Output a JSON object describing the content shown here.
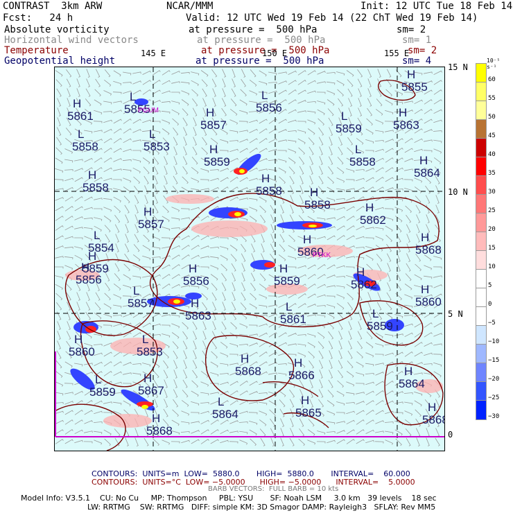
{
  "header": {
    "model": "CONTRAST  3km ARW",
    "org": "NCAR/MMM",
    "init": "Init: 12 UTC Tue 18 Feb 14",
    "fcst": "Fcst:   24 h",
    "valid": "Valid: 12 UTC Wed 19 Feb 14 (22 ChT Wed 19 Feb 14)",
    "fields": [
      {
        "name": "Absolute vorticity",
        "level": "at pressure =  500 hPa",
        "sm": "sm= 2",
        "color": "#000000"
      },
      {
        "name": "Horizontal wind vectors",
        "level": "at pressure =  500 hPa",
        "sm": "sm= 1",
        "color": "#8a8a8a"
      },
      {
        "name": "Temperature",
        "level": "at pressure =  500 hPa",
        "sm": "sm= 2",
        "color": "#8b0000"
      },
      {
        "name": "Geopotential height",
        "level": "at pressure =  500 hPa",
        "sm": "sm= 4",
        "color": "#000066"
      }
    ]
  },
  "axes": {
    "lon_labels": [
      "145 E",
      "150 E",
      "155 E"
    ],
    "lat_labels": [
      "15 N",
      "10 N",
      "5 N",
      "0"
    ]
  },
  "stations": [
    "PGUM",
    "PTKK"
  ],
  "height_marks": [
    {
      "t": "H",
      "v": "5861"
    },
    {
      "t": "L",
      "v": "5855"
    },
    {
      "t": "H",
      "v": "5857"
    },
    {
      "t": "L",
      "v": "5856"
    },
    {
      "t": "L",
      "v": "5859"
    },
    {
      "t": "H",
      "v": "5863"
    },
    {
      "t": "H",
      "v": "5855"
    },
    {
      "t": "L",
      "v": "5858"
    },
    {
      "t": "L",
      "v": "5853"
    },
    {
      "t": "H",
      "v": "5859"
    },
    {
      "t": "L",
      "v": "5858"
    },
    {
      "t": "H",
      "v": "5864"
    },
    {
      "t": "H",
      "v": "5858"
    },
    {
      "t": "H",
      "v": "5858"
    },
    {
      "t": "H",
      "v": "5858"
    },
    {
      "t": "H",
      "v": "5857"
    },
    {
      "t": "L",
      "v": "5854"
    },
    {
      "t": "H",
      "v": "5862"
    },
    {
      "t": "H",
      "v": "5859"
    },
    {
      "t": "H",
      "v": "5860"
    },
    {
      "t": "H",
      "v": "5868"
    },
    {
      "t": "H",
      "v": "5856"
    },
    {
      "t": "H",
      "v": "5859"
    },
    {
      "t": "H",
      "v": "5856"
    },
    {
      "t": "H",
      "v": "5862"
    },
    {
      "t": "L",
      "v": "5857"
    },
    {
      "t": "H",
      "v": "5863"
    },
    {
      "t": "L",
      "v": "5861"
    },
    {
      "t": "L",
      "v": "5859"
    },
    {
      "t": "H",
      "v": "5860"
    },
    {
      "t": "H",
      "v": "5860"
    },
    {
      "t": "L",
      "v": "5853"
    },
    {
      "t": "H",
      "v": "5868"
    },
    {
      "t": "H",
      "v": "5866"
    },
    {
      "t": "H",
      "v": "5864"
    },
    {
      "t": "L",
      "v": "5859"
    },
    {
      "t": "H",
      "v": "5867"
    },
    {
      "t": "L",
      "v": "5864"
    },
    {
      "t": "H",
      "v": "5865"
    },
    {
      "t": "H",
      "v": "5868"
    },
    {
      "t": "H",
      "v": "5868"
    }
  ],
  "colorbar": {
    "unit": "10⁻⁵ s⁻¹",
    "labels": [
      "60",
      "55",
      "50",
      "45",
      "40",
      "35",
      "30",
      "25",
      "20",
      "15",
      "10",
      "5",
      "0",
      "−5",
      "−10",
      "−15",
      "−20",
      "−25",
      "−30"
    ],
    "colors": [
      "#ffff00",
      "#ffff66",
      "#ffff99",
      "#b87333",
      "#cc0000",
      "#ff0000",
      "#ff4d4d",
      "#ff7777",
      "#ff9999",
      "#ffbbbb",
      "#ffdddd",
      "#ffffff",
      "#ffffff",
      "#ffffff",
      "#cfe6ff",
      "#9fb8ff",
      "#6f85ff",
      "#3355ff",
      "#0022ff"
    ]
  },
  "footer": {
    "contours1": "CONTOURS:  UNITS=m  LOW=  5880.0       HIGH=  5880.0       INTERVAL=    60.000",
    "contours2": "CONTOURS:  UNITS=°C  LOW= −5.0000      HIGH= −5.0000      INTERVAL=    5.0000",
    "barb": "BARB VECTORS:  FULL BARB = 10 kts",
    "info1": "Model Info: V3.5.1    CU: No Cu     MP: Thompson     PBL: YSU       SF: Noah LSM     3.0 km   39 levels    18 sec",
    "info2": "LW: RRTMG    SW: RRTMG   DIFF: simple KM: 3D Smagor DAMP: Rayleigh3   SFLAY: Rev MM5"
  }
}
